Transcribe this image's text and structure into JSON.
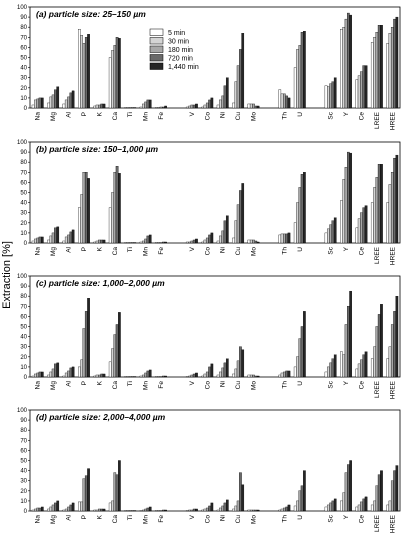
{
  "chart_data": {
    "type": "bar",
    "y_label": "Extraction [%]",
    "ylim": [
      0,
      100
    ],
    "yticks": [
      0,
      10,
      20,
      30,
      40,
      50,
      60,
      70,
      80,
      90,
      100
    ],
    "categories": [
      "Na",
      "Mg",
      "Al",
      "P",
      "K",
      "Ca",
      "Ti",
      "Mn",
      "Fe",
      "V",
      "Co",
      "Ni",
      "Cu",
      "Mo",
      "Th",
      "U",
      "Sc",
      "Y",
      "Ce",
      "LREE",
      "HREE"
    ],
    "category_gaps_before": [
      "V",
      "Th",
      "Sc"
    ],
    "legend": {
      "placement": "top-center",
      "entries": [
        "5 min",
        "30 min",
        "180 min",
        "720 min",
        "1,440 min"
      ],
      "colors": [
        "#ffffff",
        "#d4d4d4",
        "#a8a8a8",
        "#6a6a6a",
        "#262626"
      ]
    },
    "panels": [
      {
        "title": "(a) particle size: 25–150 µm",
        "show_legend": true,
        "values": [
          [
            3,
            8,
            9,
            10,
            10
          ],
          [
            5,
            11,
            13,
            18,
            21
          ],
          [
            4,
            8,
            11,
            15,
            17
          ],
          [
            78,
            72,
            64,
            70,
            73
          ],
          [
            2,
            3,
            3,
            4,
            4
          ],
          [
            50,
            57,
            62,
            70,
            69
          ],
          [
            0.5,
            0.5,
            0.5,
            0.5,
            0.5
          ],
          [
            1,
            4,
            6,
            8,
            8
          ],
          [
            0.5,
            0.5,
            1,
            1,
            2
          ],
          [
            1,
            2,
            3,
            3,
            4
          ],
          [
            1,
            3,
            5,
            8,
            10
          ],
          [
            3,
            8,
            12,
            22,
            30
          ],
          [
            5,
            26,
            42,
            58,
            74
          ],
          [
            4,
            4,
            4,
            2,
            2
          ],
          [
            18,
            14,
            14,
            12,
            10
          ],
          [
            40,
            58,
            62,
            75,
            76
          ],
          [
            22,
            21,
            24,
            26,
            30
          ],
          [
            78,
            80,
            88,
            94,
            92
          ],
          [
            28,
            32,
            36,
            42,
            42
          ],
          [
            65,
            70,
            75,
            82,
            82
          ],
          [
            64,
            74,
            80,
            88,
            90
          ]
        ]
      },
      {
        "title": "(b) particle size: 150–1,000 µm",
        "show_legend": false,
        "values": [
          [
            2,
            4,
            5,
            6,
            6
          ],
          [
            3,
            7,
            10,
            15,
            16
          ],
          [
            2,
            6,
            8,
            11,
            13
          ],
          [
            35,
            48,
            70,
            70,
            64
          ],
          [
            1,
            2,
            3,
            3,
            3
          ],
          [
            35,
            50,
            70,
            76,
            69
          ],
          [
            0.5,
            0.5,
            0.5,
            0.5,
            0.5
          ],
          [
            1,
            2,
            4,
            7,
            8
          ],
          [
            0.5,
            0.5,
            0.5,
            1,
            1
          ],
          [
            1,
            1,
            2,
            3,
            4
          ],
          [
            1,
            3,
            5,
            8,
            10
          ],
          [
            2,
            7,
            12,
            22,
            27
          ],
          [
            5,
            22,
            38,
            52,
            59
          ],
          [
            3,
            3,
            3,
            2,
            1
          ],
          [
            8,
            9,
            9,
            9,
            10
          ],
          [
            20,
            40,
            55,
            68,
            70
          ],
          [
            10,
            14,
            18,
            22,
            25
          ],
          [
            42,
            63,
            75,
            90,
            89
          ],
          [
            15,
            24,
            30,
            35,
            37
          ],
          [
            40,
            55,
            65,
            78,
            78
          ],
          [
            40,
            58,
            70,
            84,
            87
          ]
        ]
      },
      {
        "title": "(c) particle size: 1,000–2,000 µm",
        "show_legend": false,
        "values": [
          [
            1,
            3,
            4,
            5,
            5
          ],
          [
            2,
            5,
            8,
            13,
            14
          ],
          [
            1,
            4,
            6,
            9,
            10
          ],
          [
            10,
            17,
            48,
            65,
            78
          ],
          [
            1,
            2,
            2,
            3,
            3
          ],
          [
            15,
            28,
            42,
            52,
            64
          ],
          [
            0.5,
            0.5,
            0.5,
            0.5,
            0.5
          ],
          [
            1,
            2,
            4,
            6,
            7
          ],
          [
            0.5,
            0.5,
            0.5,
            1,
            1
          ],
          [
            0.5,
            1,
            2,
            3,
            4
          ],
          [
            1,
            3,
            5,
            10,
            13
          ],
          [
            2,
            5,
            9,
            14,
            18
          ],
          [
            3,
            8,
            16,
            30,
            27
          ],
          [
            2,
            2,
            2,
            1,
            1
          ],
          [
            2,
            4,
            5,
            6,
            6
          ],
          [
            10,
            20,
            38,
            50,
            65
          ],
          [
            5,
            10,
            14,
            18,
            22
          ],
          [
            25,
            22,
            52,
            70,
            85
          ],
          [
            8,
            13,
            17,
            22,
            25
          ],
          [
            18,
            30,
            50,
            62,
            72
          ],
          [
            18,
            30,
            52,
            65,
            80
          ]
        ]
      },
      {
        "title": "(d) particle size: 2,000–4,000 µm",
        "show_legend": false,
        "values": [
          [
            1,
            2,
            3,
            3,
            4
          ],
          [
            2,
            4,
            6,
            8,
            10
          ],
          [
            1,
            2,
            4,
            6,
            8
          ],
          [
            9,
            9,
            32,
            35,
            42
          ],
          [
            1,
            1,
            2,
            2,
            2
          ],
          [
            8,
            10,
            38,
            36,
            50
          ],
          [
            0.5,
            0.5,
            0.5,
            0.5,
            0.5
          ],
          [
            0.5,
            1,
            2,
            3,
            4
          ],
          [
            0.5,
            0.5,
            0.5,
            1,
            1
          ],
          [
            0.5,
            1,
            1,
            2,
            2
          ],
          [
            1,
            2,
            3,
            5,
            8
          ],
          [
            1,
            3,
            5,
            8,
            11
          ],
          [
            2,
            5,
            10,
            38,
            26
          ],
          [
            1,
            1,
            1,
            1,
            1
          ],
          [
            1,
            2,
            3,
            4,
            6
          ],
          [
            5,
            10,
            20,
            25,
            40
          ],
          [
            4,
            6,
            8,
            10,
            12
          ],
          [
            10,
            18,
            38,
            46,
            50
          ],
          [
            4,
            6,
            9,
            12,
            14
          ],
          [
            6,
            10,
            25,
            36,
            40
          ],
          [
            6,
            10,
            30,
            40,
            45
          ]
        ]
      }
    ]
  }
}
